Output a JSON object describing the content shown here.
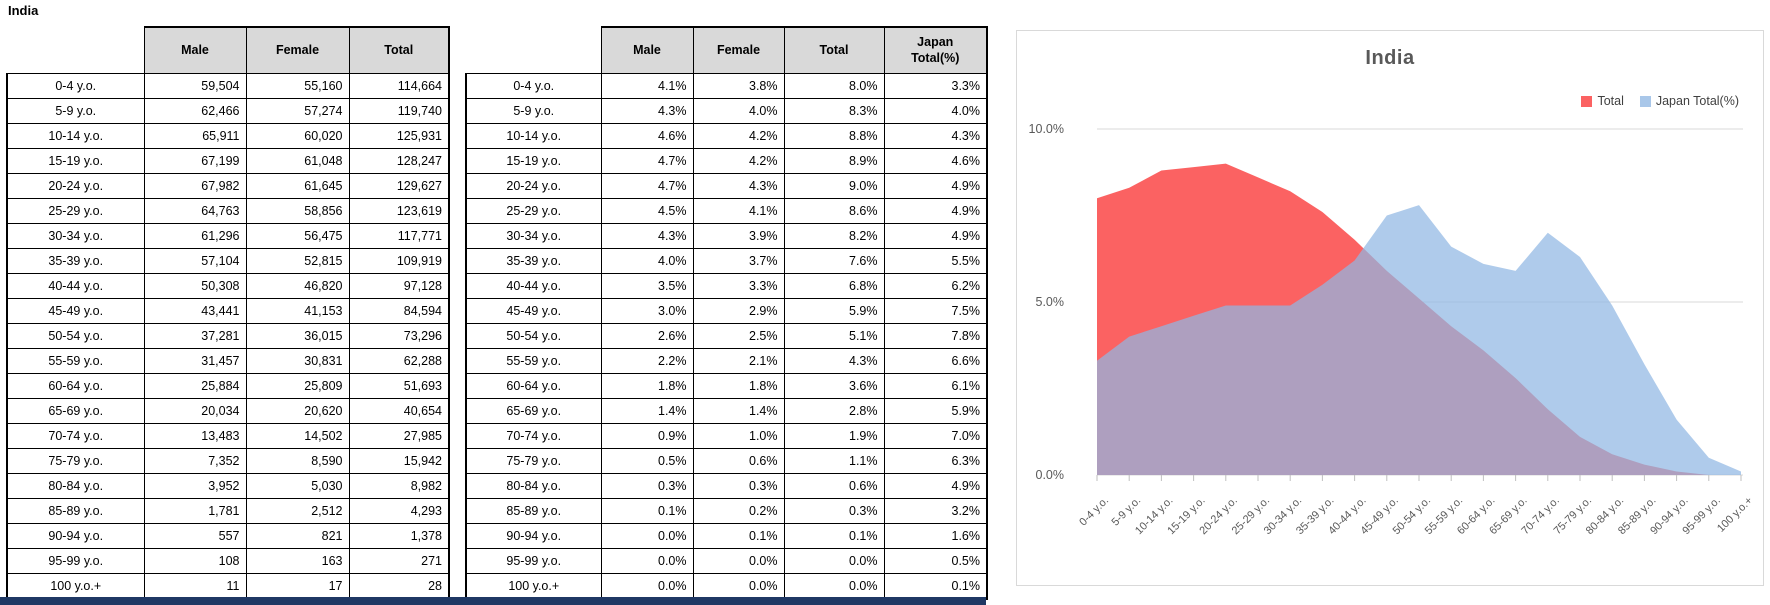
{
  "page": {
    "title": "India"
  },
  "tables": {
    "counts": {
      "headers": [
        "Male",
        "Female",
        "Total"
      ],
      "rows": [
        [
          "0-4 y.o.",
          "59,504",
          "55,160",
          "114,664"
        ],
        [
          "5-9 y.o.",
          "62,466",
          "57,274",
          "119,740"
        ],
        [
          "10-14 y.o.",
          "65,911",
          "60,020",
          "125,931"
        ],
        [
          "15-19 y.o.",
          "67,199",
          "61,048",
          "128,247"
        ],
        [
          "20-24 y.o.",
          "67,982",
          "61,645",
          "129,627"
        ],
        [
          "25-29 y.o.",
          "64,763",
          "58,856",
          "123,619"
        ],
        [
          "30-34 y.o.",
          "61,296",
          "56,475",
          "117,771"
        ],
        [
          "35-39 y.o.",
          "57,104",
          "52,815",
          "109,919"
        ],
        [
          "40-44 y.o.",
          "50,308",
          "46,820",
          "97,128"
        ],
        [
          "45-49 y.o.",
          "43,441",
          "41,153",
          "84,594"
        ],
        [
          "50-54 y.o.",
          "37,281",
          "36,015",
          "73,296"
        ],
        [
          "55-59 y.o.",
          "31,457",
          "30,831",
          "62,288"
        ],
        [
          "60-64 y.o.",
          "25,884",
          "25,809",
          "51,693"
        ],
        [
          "65-69 y.o.",
          "20,034",
          "20,620",
          "40,654"
        ],
        [
          "70-74 y.o.",
          "13,483",
          "14,502",
          "27,985"
        ],
        [
          "75-79 y.o.",
          "7,352",
          "8,590",
          "15,942"
        ],
        [
          "80-84 y.o.",
          "3,952",
          "5,030",
          "8,982"
        ],
        [
          "85-89 y.o.",
          "1,781",
          "2,512",
          "4,293"
        ],
        [
          "90-94 y.o.",
          "557",
          "821",
          "1,378"
        ],
        [
          "95-99 y.o.",
          "108",
          "163",
          "271"
        ],
        [
          "100 y.o.+",
          "11",
          "17",
          "28"
        ]
      ]
    },
    "percents": {
      "headers": [
        "Male",
        "Female",
        "Total",
        "Japan\nTotal(%)"
      ],
      "rows": [
        [
          "0-4 y.o.",
          "4.1%",
          "3.8%",
          "8.0%",
          "3.3%"
        ],
        [
          "5-9 y.o.",
          "4.3%",
          "4.0%",
          "8.3%",
          "4.0%"
        ],
        [
          "10-14 y.o.",
          "4.6%",
          "4.2%",
          "8.8%",
          "4.3%"
        ],
        [
          "15-19 y.o.",
          "4.7%",
          "4.2%",
          "8.9%",
          "4.6%"
        ],
        [
          "20-24 y.o.",
          "4.7%",
          "4.3%",
          "9.0%",
          "4.9%"
        ],
        [
          "25-29 y.o.",
          "4.5%",
          "4.1%",
          "8.6%",
          "4.9%"
        ],
        [
          "30-34 y.o.",
          "4.3%",
          "3.9%",
          "8.2%",
          "4.9%"
        ],
        [
          "35-39 y.o.",
          "4.0%",
          "3.7%",
          "7.6%",
          "5.5%"
        ],
        [
          "40-44 y.o.",
          "3.5%",
          "3.3%",
          "6.8%",
          "6.2%"
        ],
        [
          "45-49 y.o.",
          "3.0%",
          "2.9%",
          "5.9%",
          "7.5%"
        ],
        [
          "50-54 y.o.",
          "2.6%",
          "2.5%",
          "5.1%",
          "7.8%"
        ],
        [
          "55-59 y.o.",
          "2.2%",
          "2.1%",
          "4.3%",
          "6.6%"
        ],
        [
          "60-64 y.o.",
          "1.8%",
          "1.8%",
          "3.6%",
          "6.1%"
        ],
        [
          "65-69 y.o.",
          "1.4%",
          "1.4%",
          "2.8%",
          "5.9%"
        ],
        [
          "70-74 y.o.",
          "0.9%",
          "1.0%",
          "1.9%",
          "7.0%"
        ],
        [
          "75-79 y.o.",
          "0.5%",
          "0.6%",
          "1.1%",
          "6.3%"
        ],
        [
          "80-84 y.o.",
          "0.3%",
          "0.3%",
          "0.6%",
          "4.9%"
        ],
        [
          "85-89 y.o.",
          "0.1%",
          "0.2%",
          "0.3%",
          "3.2%"
        ],
        [
          "90-94 y.o.",
          "0.0%",
          "0.1%",
          "0.1%",
          "1.6%"
        ],
        [
          "95-99 y.o.",
          "0.0%",
          "0.0%",
          "0.0%",
          "0.5%"
        ],
        [
          "100 y.o.+",
          "0.0%",
          "0.0%",
          "0.0%",
          "0.1%"
        ]
      ]
    }
  },
  "chart": {
    "title": "India",
    "legend": [
      {
        "label": "Total",
        "color": "#FB6262"
      },
      {
        "label": "Japan Total(%)",
        "color": "#A9C7E9"
      }
    ],
    "y_ticks": [
      {
        "label": "10.0%",
        "value": 10
      },
      {
        "label": "5.0%",
        "value": 5
      },
      {
        "label": "0.0%",
        "value": 0
      }
    ],
    "colors": {
      "total_fill": "#FB6262",
      "japan_fill": "#90B7E3",
      "japan_opacity": 0.72,
      "gridline": "#D9D9D9",
      "axis_text": "#595959",
      "tick": "#BFBFBF"
    }
  },
  "chart_data": {
    "type": "area",
    "title": "India",
    "categories": [
      "0-4 y.o.",
      "5-9 y.o.",
      "10-14 y.o.",
      "15-19 y.o.",
      "20-24 y.o.",
      "25-29 y.o.",
      "30-34 y.o.",
      "35-39 y.o.",
      "40-44 y.o.",
      "45-49 y.o.",
      "50-54 y.o.",
      "55-59 y.o.",
      "60-64 y.o.",
      "65-69 y.o.",
      "70-74 y.o.",
      "75-79 y.o.",
      "80-84 y.o.",
      "85-89 y.o.",
      "90-94 y.o.",
      "95-99 y.o.",
      "100 y.o.+"
    ],
    "series": [
      {
        "name": "Total",
        "values": [
          8.0,
          8.3,
          8.8,
          8.9,
          9.0,
          8.6,
          8.2,
          7.6,
          6.8,
          5.9,
          5.1,
          4.3,
          3.6,
          2.8,
          1.9,
          1.1,
          0.6,
          0.3,
          0.1,
          0.0,
          0.0
        ]
      },
      {
        "name": "Japan Total(%)",
        "values": [
          3.3,
          4.0,
          4.3,
          4.6,
          4.9,
          4.9,
          4.9,
          5.5,
          6.2,
          7.5,
          7.8,
          6.6,
          6.1,
          5.9,
          7.0,
          6.3,
          4.9,
          3.2,
          1.6,
          0.5,
          0.1
        ]
      }
    ],
    "xlabel": "",
    "ylabel": "",
    "ylim": [
      0,
      10
    ],
    "y_tick_step": 5,
    "grid": true,
    "legend_position": "top-right"
  },
  "footer": {
    "strip_color": "#1F3864"
  }
}
